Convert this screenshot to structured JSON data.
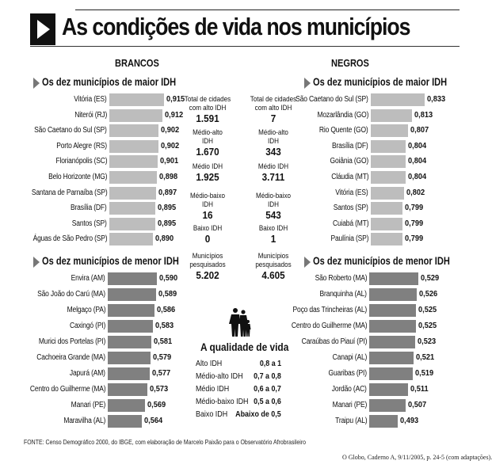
{
  "title": "As condições de vida nos municípios",
  "colors": {
    "top_bar": "#bdbdbd",
    "bottom_bar": "#808080",
    "heading_marker": "#777777"
  },
  "groups": {
    "brancos": "BRANCOS",
    "negros": "NEGROS"
  },
  "chart_data": [
    {
      "type": "bar",
      "orientation": "horizontal",
      "title": "Os dez municípios de maior IDH",
      "group": "BRANCOS",
      "categories": [
        "Vitória (ES)",
        "Niterói (RJ)",
        "São Caetano do Sul (SP)",
        "Porto Alegre (RS)",
        "Florianópolis (SC)",
        "Belo Horizonte (MG)",
        "Santana de Parnaíba (SP)",
        "Brasília (DF)",
        "Santos (SP)",
        "Águas de São Pedro (SP)"
      ],
      "values": [
        0.915,
        0.912,
        0.902,
        0.902,
        0.901,
        0.898,
        0.897,
        0.895,
        0.895,
        0.89
      ],
      "labels": [
        "0,915",
        "0,912",
        "0,902",
        "0,902",
        "0,901",
        "0,898",
        "0,897",
        "0,895",
        "0,895",
        "0,890"
      ]
    },
    {
      "type": "bar",
      "orientation": "horizontal",
      "title": "Os dez municípios de menor IDH",
      "group": "BRANCOS",
      "categories": [
        "Envira (AM)",
        "São João do Carú (MA)",
        "Melgaço (PA)",
        "Caxingó (PI)",
        "Murici dos Portelas (PI)",
        "Cachoeira Grande (MA)",
        "Japurá (AM)",
        "Centro do Guilherme (MA)",
        "Manari (PE)",
        "Maravilha (AL)"
      ],
      "values": [
        0.59,
        0.589,
        0.586,
        0.583,
        0.581,
        0.579,
        0.577,
        0.573,
        0.569,
        0.564
      ],
      "labels": [
        "0,590",
        "0,589",
        "0,586",
        "0,583",
        "0,581",
        "0,579",
        "0,577",
        "0,573",
        "0,569",
        "0,564"
      ]
    },
    {
      "type": "bar",
      "orientation": "horizontal",
      "title": "Os dez municípios de maior IDH",
      "group": "NEGROS",
      "categories": [
        "São Caetano do Sul (SP)",
        "Mozarlândia (GO)",
        "Rio Quente (GO)",
        "Brasília (DF)",
        "Goiânia (GO)",
        "Cláudia (MT)",
        "Vitória (ES)",
        "Santos (SP)",
        "Cuiabá (MT)",
        "Paulínia (SP)"
      ],
      "values": [
        0.833,
        0.813,
        0.807,
        0.804,
        0.804,
        0.804,
        0.802,
        0.799,
        0.799,
        0.799
      ],
      "labels": [
        "0,833",
        "0,813",
        "0,807",
        "0,804",
        "0,804",
        "0,804",
        "0,802",
        "0,799",
        "0,799",
        "0,799"
      ]
    },
    {
      "type": "bar",
      "orientation": "horizontal",
      "title": "Os dez municípios de menor IDH",
      "group": "NEGROS",
      "categories": [
        "São Roberto (MA)",
        "Branquinha (AL)",
        "Poço das Trincheiras (AL)",
        "Centro do Guilherme (MA)",
        "Caraúbas do Piauí (PI)",
        "Canapi (AL)",
        "Guaribas (PI)",
        "Jordão (AC)",
        "Manari (PE)",
        "Traipu (AL)"
      ],
      "values": [
        0.529,
        0.526,
        0.525,
        0.525,
        0.523,
        0.521,
        0.519,
        0.511,
        0.507,
        0.493
      ],
      "labels": [
        "0,529",
        "0,526",
        "0,525",
        "0,525",
        "0,523",
        "0,521",
        "0,519",
        "0,511",
        "0,507",
        "0,493"
      ]
    }
  ],
  "stats": {
    "brancos": [
      {
        "label": "Total de cidades com alto IDH",
        "value": "1.591"
      },
      {
        "label": "Médio-alto IDH",
        "value": "1.670"
      },
      {
        "label": "Médio IDH",
        "value": "1.925"
      },
      {
        "label": "Médio-baixo IDH",
        "value": "16"
      },
      {
        "label": "Baixo IDH",
        "value": "0"
      },
      {
        "label": "Municípios pesquisados",
        "value": "5.202"
      }
    ],
    "negros": [
      {
        "label": "Total de cidades com alto IDH",
        "value": "7"
      },
      {
        "label": "Médio-alto IDH",
        "value": "343"
      },
      {
        "label": "Médio IDH",
        "value": "3.711"
      },
      {
        "label": "Médio-baixo IDH",
        "value": "543"
      },
      {
        "label": "Baixo IDH",
        "value": "1"
      },
      {
        "label": "Municípios pesquisados",
        "value": "4.605"
      }
    ]
  },
  "quality": {
    "title": "A qualidade de vida",
    "icon": "family-icon",
    "rows": [
      {
        "label": "Alto IDH",
        "range": "0,8 a 1"
      },
      {
        "label": "Médio-alto IDH",
        "range": "0,7 a 0,8"
      },
      {
        "label": "Médio IDH",
        "range": "0,6 a 0,7"
      },
      {
        "label": "Médio-baixo IDH",
        "range": "0,5 a 0,6"
      },
      {
        "label": "Baixo IDH",
        "range": "Abaixo de 0,5"
      }
    ]
  },
  "source": "FONTE: Censo Demográfico 2000, do IBGE, com elaboração de Marcelo Paixão para o Observatório Afrobrasileiro",
  "credit": "O Globo, Caderno A, 9/11/2005, p. 24-5 (com adaptações)."
}
